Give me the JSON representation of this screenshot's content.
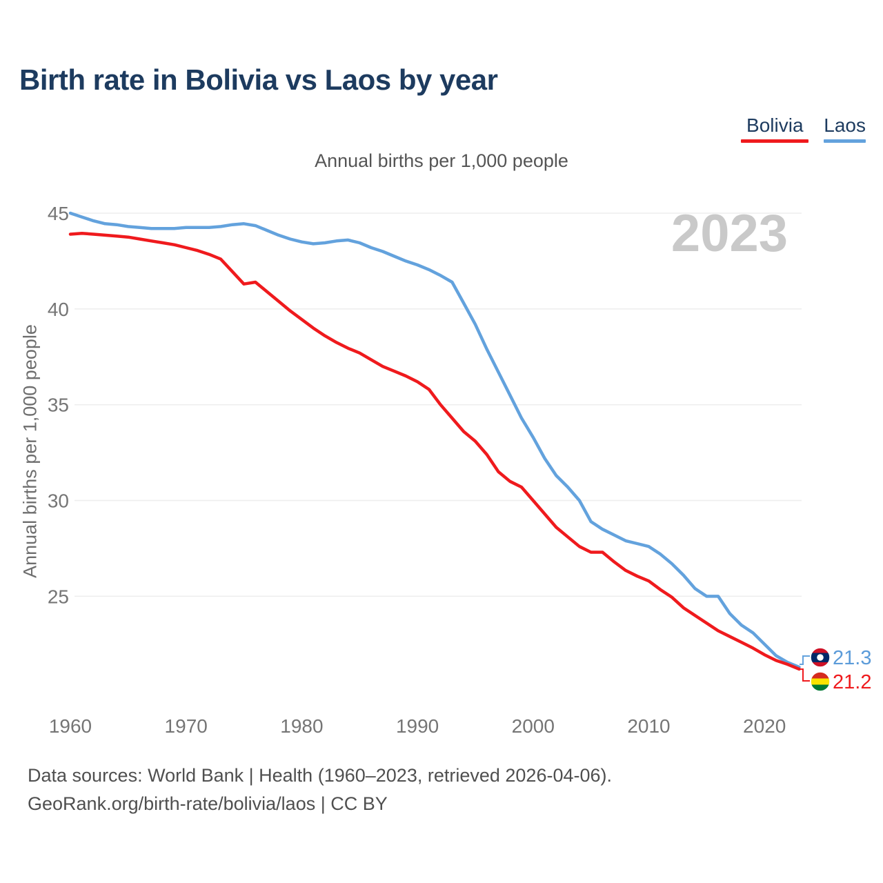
{
  "title": "Birth rate in Bolivia vs Laos by year",
  "subtitle": "Annual births per 1,000 people",
  "y_axis_title": "Annual births per 1,000 people",
  "watermark": "2023",
  "legend": [
    {
      "label": "Bolivia",
      "color": "#ef1a1d"
    },
    {
      "label": "Laos",
      "color": "#63a2dd"
    }
  ],
  "end_labels": [
    {
      "series": "Laos",
      "value": "21.3",
      "color": "#5b9bd9",
      "flag": "laos-flag"
    },
    {
      "series": "Bolivia",
      "value": "21.2",
      "color": "#ef1a1d",
      "flag": "bolivia-flag"
    }
  ],
  "flag_colors": {
    "laos": {
      "red": "#ce1126",
      "blue": "#002868",
      "circle": "#ffffff"
    },
    "bolivia": {
      "red": "#d52b1e",
      "yellow": "#f9e300",
      "green": "#007934"
    }
  },
  "footer": {
    "line1": "Data sources: World Bank | Health (1960–2023, retrieved 2026-04-06).",
    "line2": "GeoRank.org/birth-rate/bolivia/laos | CC BY"
  },
  "chart_data": {
    "type": "line",
    "title": "Birth rate in Bolivia vs Laos by year",
    "subtitle": "Annual births per 1,000 people",
    "xlabel": "",
    "ylabel": "Annual births per 1,000 people",
    "x_ticks": [
      1960,
      1970,
      1980,
      1990,
      2000,
      2010,
      2020
    ],
    "y_ticks": [
      45,
      40,
      35,
      30,
      25
    ],
    "ylim": [
      20.5,
      45.5
    ],
    "xlim": [
      1960,
      2023
    ],
    "grid": "horizontal",
    "legend_position": "top-right",
    "x": [
      1960,
      1961,
      1962,
      1963,
      1964,
      1965,
      1966,
      1967,
      1968,
      1969,
      1970,
      1971,
      1972,
      1973,
      1974,
      1975,
      1976,
      1977,
      1978,
      1979,
      1980,
      1981,
      1982,
      1983,
      1984,
      1985,
      1986,
      1987,
      1988,
      1989,
      1990,
      1991,
      1992,
      1993,
      1994,
      1995,
      1996,
      1997,
      1998,
      1999,
      2000,
      2001,
      2002,
      2003,
      2004,
      2005,
      2006,
      2007,
      2008,
      2009,
      2010,
      2011,
      2012,
      2013,
      2014,
      2015,
      2016,
      2017,
      2018,
      2019,
      2020,
      2021,
      2022,
      2023
    ],
    "series": [
      {
        "name": "Bolivia",
        "color": "#ef1a1d",
        "end_value": 21.2,
        "values": [
          43.9,
          43.95,
          43.9,
          43.85,
          43.8,
          43.75,
          43.65,
          43.55,
          43.45,
          43.35,
          43.2,
          43.05,
          42.85,
          42.6,
          41.95,
          41.3,
          41.4,
          40.9,
          40.4,
          39.9,
          39.45,
          39.0,
          38.6,
          38.25,
          37.95,
          37.7,
          37.35,
          37.0,
          36.75,
          36.5,
          36.2,
          35.8,
          35.0,
          34.3,
          33.6,
          33.1,
          32.4,
          31.5,
          31.0,
          30.7,
          30.0,
          29.3,
          28.6,
          28.1,
          27.6,
          27.3,
          27.3,
          26.8,
          26.35,
          26.05,
          25.8,
          25.35,
          24.95,
          24.4,
          24.0,
          23.6,
          23.2,
          22.9,
          22.6,
          22.3,
          21.95,
          21.65,
          21.45,
          21.2
        ]
      },
      {
        "name": "Laos",
        "color": "#63a2dd",
        "end_value": 21.3,
        "values": [
          45.0,
          44.8,
          44.6,
          44.45,
          44.4,
          44.3,
          44.25,
          44.2,
          44.2,
          44.2,
          44.25,
          44.25,
          44.25,
          44.3,
          44.4,
          44.45,
          44.35,
          44.1,
          43.85,
          43.65,
          43.5,
          43.4,
          43.45,
          43.55,
          43.6,
          43.45,
          43.2,
          43.0,
          42.75,
          42.5,
          42.3,
          42.05,
          41.75,
          41.4,
          40.3,
          39.2,
          37.9,
          36.7,
          35.5,
          34.3,
          33.3,
          32.2,
          31.3,
          30.7,
          30.0,
          28.9,
          28.5,
          28.2,
          27.9,
          27.75,
          27.6,
          27.2,
          26.7,
          26.1,
          25.4,
          25.0,
          25.0,
          24.1,
          23.5,
          23.1,
          22.5,
          21.9,
          21.55,
          21.3
        ]
      }
    ]
  }
}
